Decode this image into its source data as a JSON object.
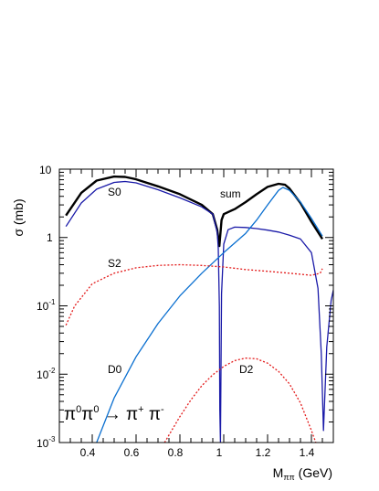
{
  "chart_data": {
    "type": "line",
    "xlabel": "M",
    "xlabel_sub": "ππ",
    "xlabel_unit": " (GeV)",
    "ylabel": "σ (mb)",
    "xlim": [
      0.25,
      1.5
    ],
    "ylim": [
      0.001,
      10
    ],
    "yscale": "log",
    "x_ticks": [
      0.4,
      0.6,
      0.8,
      1.0,
      1.2,
      1.4
    ],
    "x_tick_labels": [
      "0.4",
      "0.6",
      "0.8",
      "1",
      "1.2",
      "1.4"
    ],
    "y_ticks": [
      0.001,
      0.01,
      0.1,
      1,
      10
    ],
    "y_tick_labels": [
      {
        "base": "10",
        "exp": "-3"
      },
      {
        "base": "10",
        "exp": "-2"
      },
      {
        "base": "10",
        "exp": "-1"
      },
      {
        "base": "1",
        "exp": ""
      },
      {
        "base": "10",
        "exp": ""
      }
    ],
    "grid": false,
    "reaction_label": {
      "a": "π",
      "a_exp": "0",
      "b": "π",
      "b_exp": "0",
      "arrow": " → ",
      "c": "π",
      "c_exp": "+",
      "d": " π",
      "d_exp": "-"
    },
    "series": [
      {
        "name": "sum",
        "color": "#000000",
        "style": "solid",
        "x": [
          0.28,
          0.35,
          0.42,
          0.5,
          0.55,
          0.6,
          0.7,
          0.8,
          0.9,
          0.95,
          0.97,
          0.98,
          0.99,
          1.0,
          1.05,
          1.1,
          1.15,
          1.2,
          1.25,
          1.28,
          1.3,
          1.35,
          1.4,
          1.45
        ],
        "y": [
          2.1,
          4.5,
          6.8,
          7.8,
          7.7,
          7.1,
          5.6,
          4.3,
          3.0,
          2.2,
          1.3,
          0.75,
          1.8,
          2.2,
          2.6,
          3.3,
          4.3,
          5.5,
          6.1,
          5.9,
          5.2,
          3.2,
          1.7,
          0.95
        ]
      },
      {
        "name": "S0",
        "color": "#1a1aa8",
        "style": "solid",
        "x": [
          0.28,
          0.35,
          0.42,
          0.5,
          0.55,
          0.6,
          0.7,
          0.8,
          0.9,
          0.95,
          0.97,
          0.975,
          0.98,
          0.982,
          0.985,
          0.99,
          1.0,
          1.02,
          1.05,
          1.1,
          1.15,
          1.2,
          1.25,
          1.3,
          1.35,
          1.4,
          1.43,
          1.445,
          1.455,
          1.47,
          1.49,
          1.5
        ],
        "y": [
          1.45,
          3.2,
          5.1,
          6.4,
          6.6,
          6.3,
          5.0,
          3.8,
          2.8,
          2.2,
          1.2,
          0.7,
          0.1,
          0.003,
          0.001,
          0.15,
          0.8,
          1.3,
          1.42,
          1.4,
          1.35,
          1.28,
          1.2,
          1.08,
          0.95,
          0.6,
          0.18,
          0.02,
          0.0015,
          0.025,
          0.12,
          0.17
        ]
      },
      {
        "name": "D0",
        "color": "#0a6fd0",
        "style": "solid",
        "x": [
          0.42,
          0.5,
          0.6,
          0.7,
          0.8,
          0.9,
          1.0,
          1.1,
          1.15,
          1.2,
          1.25,
          1.27,
          1.3,
          1.35,
          1.4,
          1.45
        ],
        "y": [
          0.001,
          0.0045,
          0.018,
          0.055,
          0.14,
          0.3,
          0.6,
          1.15,
          1.8,
          3.0,
          4.9,
          5.4,
          4.9,
          3.3,
          1.9,
          1.05
        ]
      },
      {
        "name": "S2",
        "color": "#e31a1a",
        "style": "dotted",
        "x": [
          0.28,
          0.32,
          0.4,
          0.5,
          0.6,
          0.7,
          0.8,
          0.9,
          1.0,
          1.1,
          1.2,
          1.3,
          1.4,
          1.44,
          1.45
        ],
        "y": [
          0.052,
          0.1,
          0.21,
          0.3,
          0.36,
          0.39,
          0.4,
          0.39,
          0.37,
          0.34,
          0.32,
          0.3,
          0.28,
          0.3,
          0.35
        ]
      },
      {
        "name": "D2",
        "color": "#e31a1a",
        "style": "dotted",
        "x": [
          0.73,
          0.8,
          0.85,
          0.9,
          0.95,
          1.0,
          1.05,
          1.1,
          1.15,
          1.2,
          1.25,
          1.3,
          1.35,
          1.4,
          1.42
        ],
        "y": [
          0.001,
          0.0024,
          0.0042,
          0.0068,
          0.0098,
          0.013,
          0.0158,
          0.0172,
          0.0168,
          0.0145,
          0.011,
          0.0072,
          0.0038,
          0.0015,
          0.001
        ]
      }
    ],
    "annotations": [
      "S0",
      "S2",
      "D0",
      "D2",
      "sum"
    ]
  }
}
